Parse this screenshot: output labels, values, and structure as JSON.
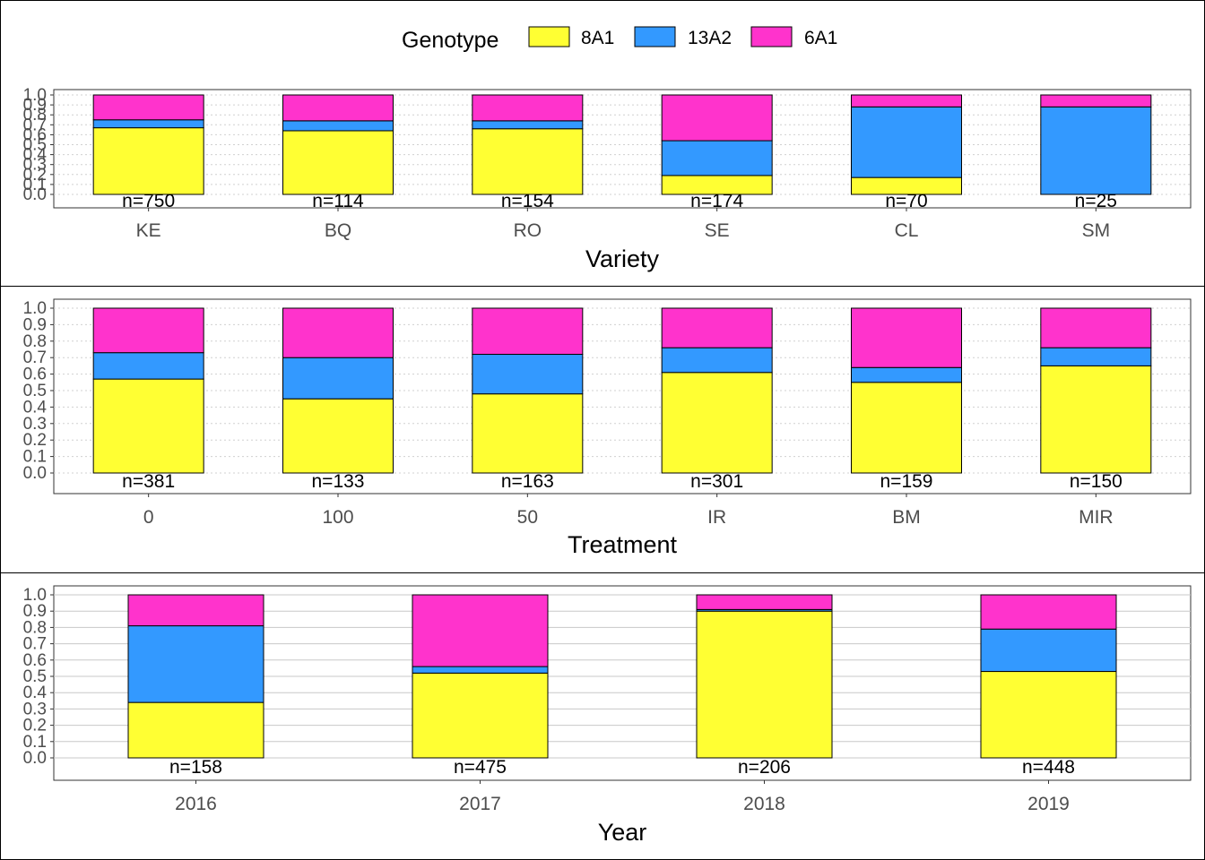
{
  "legend": {
    "title": "Genotype",
    "position": "top",
    "items": [
      {
        "label": "8A1",
        "color": "#FFFF33"
      },
      {
        "label": "13A2",
        "color": "#3399FF"
      },
      {
        "label": "6A1",
        "color": "#FF33CC"
      }
    ]
  },
  "chart_data": [
    {
      "type": "bar",
      "stacked": true,
      "xlabel": "Variety",
      "ylabel": "",
      "ylim": [
        0,
        1.0
      ],
      "yticks": [
        "0.0",
        "0.1",
        "0.2",
        "0.3",
        "0.4",
        "0.5",
        "0.6",
        "0.7",
        "0.8",
        "0.9",
        "1.0"
      ],
      "grid": "dotted",
      "categories": [
        "KE",
        "BQ",
        "RO",
        "SE",
        "CL",
        "SM"
      ],
      "counts": [
        "n=750",
        "n=114",
        "n=154",
        "n=174",
        "n=70",
        "n=25"
      ],
      "series": [
        {
          "name": "8A1",
          "values": [
            0.67,
            0.64,
            0.66,
            0.19,
            0.17,
            0.0
          ]
        },
        {
          "name": "13A2",
          "values": [
            0.08,
            0.1,
            0.08,
            0.35,
            0.71,
            0.88
          ]
        },
        {
          "name": "6A1",
          "values": [
            0.25,
            0.26,
            0.26,
            0.46,
            0.12,
            0.12
          ]
        }
      ]
    },
    {
      "type": "bar",
      "stacked": true,
      "xlabel": "Treatment",
      "ylabel": "",
      "ylim": [
        0,
        1.0
      ],
      "yticks": [
        "0.0",
        "0.1",
        "0.2",
        "0.3",
        "0.4",
        "0.5",
        "0.6",
        "0.7",
        "0.8",
        "0.9",
        "1.0"
      ],
      "grid": "dotted",
      "categories": [
        "0",
        "100",
        "50",
        "IR",
        "BM",
        "MIR"
      ],
      "counts": [
        "n=381",
        "n=133",
        "n=163",
        "n=301",
        "n=159",
        "n=150"
      ],
      "series": [
        {
          "name": "8A1",
          "values": [
            0.57,
            0.45,
            0.48,
            0.61,
            0.55,
            0.65
          ]
        },
        {
          "name": "13A2",
          "values": [
            0.16,
            0.25,
            0.24,
            0.15,
            0.09,
            0.11
          ]
        },
        {
          "name": "6A1",
          "values": [
            0.27,
            0.3,
            0.28,
            0.24,
            0.36,
            0.24
          ]
        }
      ]
    },
    {
      "type": "bar",
      "stacked": true,
      "xlabel": "Year",
      "ylabel": "",
      "ylim": [
        0,
        1.0
      ],
      "yticks": [
        "0.0",
        "0.1",
        "0.2",
        "0.3",
        "0.4",
        "0.5",
        "0.6",
        "0.7",
        "0.8",
        "0.9",
        "1.0"
      ],
      "grid": "solid",
      "categories": [
        "2016",
        "2017",
        "2018",
        "2019"
      ],
      "counts": [
        "n=158",
        "n=475",
        "n=206",
        "n=448"
      ],
      "series": [
        {
          "name": "8A1",
          "values": [
            0.34,
            0.52,
            0.9,
            0.53
          ]
        },
        {
          "name": "13A2",
          "values": [
            0.47,
            0.04,
            0.01,
            0.26
          ]
        },
        {
          "name": "6A1",
          "values": [
            0.19,
            0.44,
            0.09,
            0.21
          ]
        }
      ]
    }
  ]
}
